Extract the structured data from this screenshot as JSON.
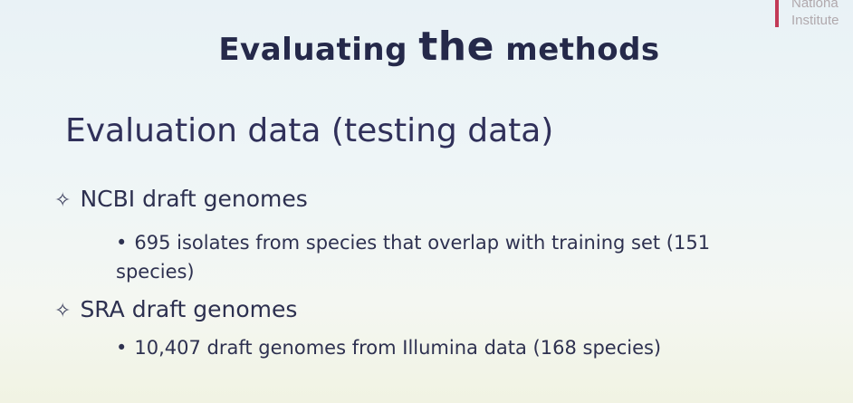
{
  "logo": {
    "line1": "Nationa",
    "line2": "Institute"
  },
  "title": {
    "part1": "Evaluating ",
    "part2": "the",
    "part3": " methods"
  },
  "subtitle": "Evaluation data (testing data)",
  "bullets": [
    {
      "symbol": "✧",
      "text": "NCBI draft genomes",
      "sub": {
        "symbol": "•",
        "line1": "695 isolates from species that overlap with training set  (151",
        "line2": "species)"
      }
    },
    {
      "symbol": "✧",
      "text": "SRA draft genomes",
      "sub": {
        "symbol": "•",
        "line1": "10,407 draft genomes from Illumina data (168 species)"
      }
    }
  ]
}
